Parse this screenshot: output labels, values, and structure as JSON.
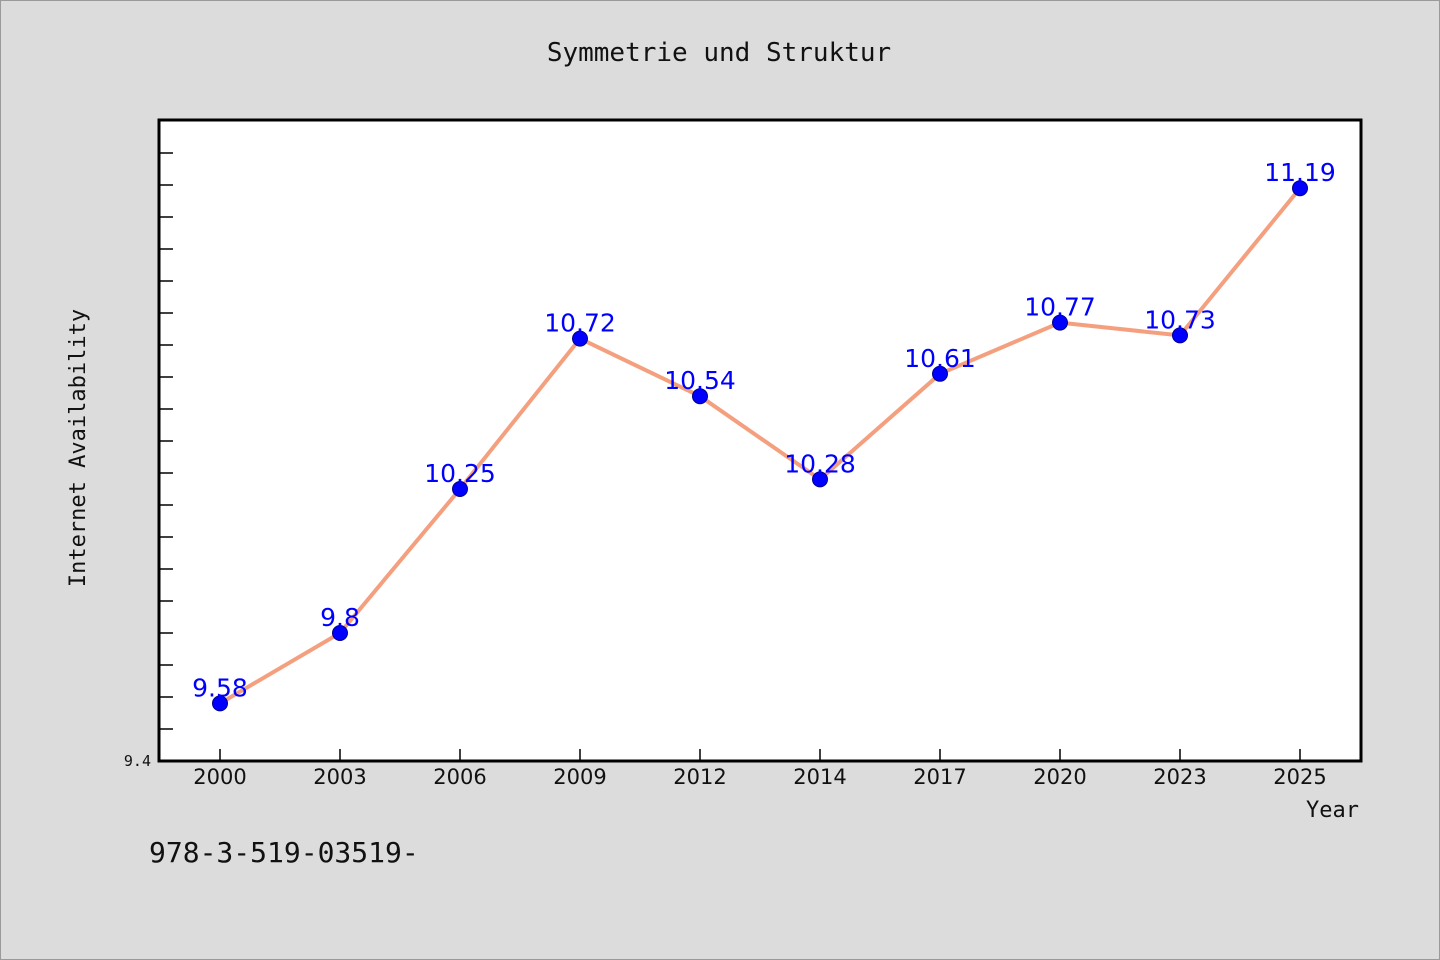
{
  "isbn_text": "978-3-519-03519-",
  "colors": {
    "background": "#dcdcdc",
    "plot_background": "#ffffff",
    "line": "#f4a07f",
    "marker": "#0000ff",
    "data_label": "#0000ff"
  },
  "chart_data": {
    "type": "line",
    "title": "Symmetrie und Struktur",
    "xlabel": "Year",
    "ylabel": "Internet Availability",
    "categories": [
      "2000",
      "2003",
      "2006",
      "2009",
      "2012",
      "2014",
      "2017",
      "2020",
      "2023",
      "2025"
    ],
    "series": [
      {
        "values": [
          9.58,
          9.8,
          10.25,
          10.72,
          10.54,
          10.28,
          10.61,
          10.77,
          10.73,
          11.19
        ],
        "labels": [
          "9.58",
          "9.8",
          "10.25",
          "10.72",
          "10.54",
          "10.28",
          "10.61",
          "10.77",
          "10.73",
          "11.19"
        ]
      }
    ],
    "ylim": [
      9.4,
      11.4
    ],
    "y_tick_labels": [
      "9.4"
    ],
    "y_minor_step": 0.1,
    "grid": false,
    "legend": "none",
    "markers": "circle"
  }
}
